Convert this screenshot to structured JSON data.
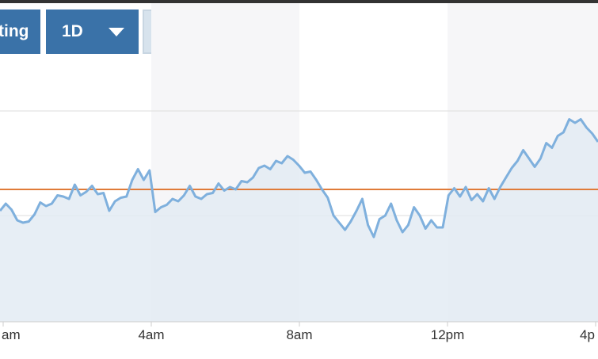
{
  "toolbar": {
    "setting_label": "ting",
    "period_label": "1D",
    "mode_dollar": "$",
    "mode_percent": "%",
    "selected_mode": "$"
  },
  "colors": {
    "accent": "#3a72a8",
    "line": "#7fb0dd",
    "area": "#e3ebf3",
    "reference": "#e07b39",
    "shade": "#f6f6f8",
    "grid": "#dddddd"
  },
  "chart_data": {
    "type": "area",
    "x_tick_labels": [
      "am",
      "4am",
      "8am",
      "12pm",
      "4p"
    ],
    "shaded_intervals": [
      [
        "4am",
        "8am"
      ],
      [
        "12pm",
        "4p"
      ]
    ],
    "grid": "horizontal",
    "reference_line": "previous close (orange)",
    "series": [
      {
        "values": [
          0.6,
          0.66,
          0.61,
          0.52,
          0.5,
          0.51,
          0.57,
          0.67,
          0.64,
          0.66,
          0.73,
          0.72,
          0.7,
          0.82,
          0.73,
          0.76,
          0.81,
          0.74,
          0.75,
          0.6,
          0.68,
          0.71,
          0.72,
          0.86,
          0.95,
          0.86,
          0.94,
          0.59,
          0.63,
          0.65,
          0.7,
          0.68,
          0.73,
          0.81,
          0.72,
          0.7,
          0.74,
          0.75,
          0.83,
          0.77,
          0.8,
          0.78,
          0.85,
          0.84,
          0.88,
          0.96,
          0.98,
          0.95,
          1.02,
          1.0,
          1.06,
          1.03,
          0.98,
          0.92,
          0.93,
          0.86,
          0.78,
          0.71,
          0.56,
          0.5,
          0.44,
          0.51,
          0.6,
          0.7,
          0.48,
          0.38,
          0.53,
          0.56,
          0.66,
          0.52,
          0.42,
          0.48,
          0.63,
          0.56,
          0.45,
          0.52,
          0.46,
          0.46,
          0.73,
          0.79,
          0.72,
          0.8,
          0.69,
          0.74,
          0.68,
          0.79,
          0.7,
          0.8,
          0.88,
          0.96,
          1.02,
          1.11,
          1.04,
          0.97,
          1.04,
          1.17,
          1.13,
          1.23,
          1.26,
          1.37,
          1.34,
          1.37,
          1.3,
          1.25,
          1.18
        ]
      }
    ]
  }
}
